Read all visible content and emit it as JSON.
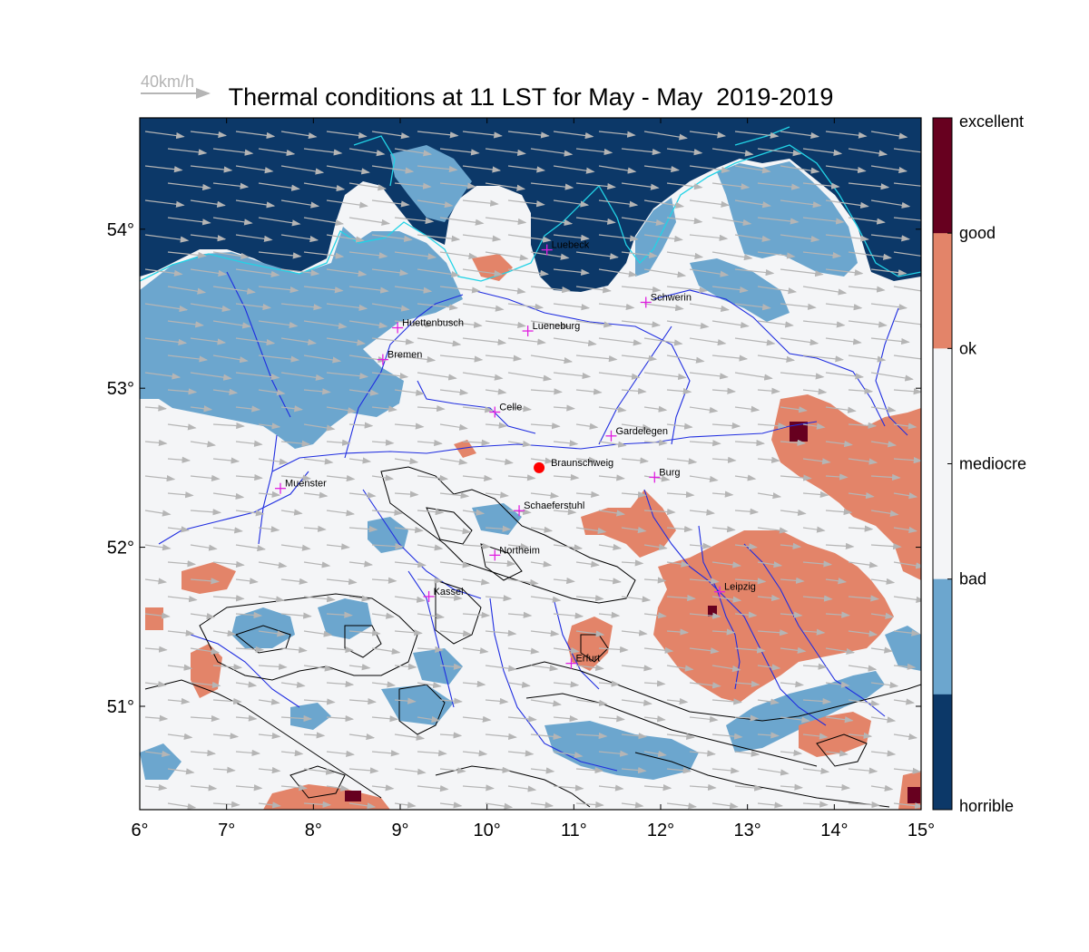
{
  "title": "Thermal conditions at 11 LST for May - May  2019-2019",
  "wind_reference": {
    "label": "40km/h"
  },
  "map": {
    "lon_range": [
      6,
      15
    ],
    "lat_range": [
      50.35,
      54.7
    ],
    "lon_ticks": [
      "6°",
      "7°",
      "8°",
      "9°",
      "10°",
      "11°",
      "12°",
      "13°",
      "14°",
      "15°"
    ],
    "lat_ticks": [
      "51°",
      "52°",
      "53°",
      "54°"
    ],
    "lat_tick_values": [
      51,
      52,
      53,
      54
    ]
  },
  "colorbar": {
    "labels": [
      "excellent",
      "good",
      "ok",
      "mediocre",
      "bad",
      "horrible"
    ],
    "colors": {
      "excellent": "#67001f",
      "good": "#e38469",
      "ok": "#f4f5f7",
      "mediocre": "#f4f5f7",
      "bad": "#6ca6ce",
      "horrible": "#0c3868"
    }
  },
  "cities": [
    {
      "name": "Luebeck",
      "lon": 10.69,
      "lat": 53.87
    },
    {
      "name": "Schwerin",
      "lon": 11.83,
      "lat": 53.54
    },
    {
      "name": "Huettenbusch",
      "lon": 8.97,
      "lat": 53.38
    },
    {
      "name": "Lueneburg",
      "lon": 10.47,
      "lat": 53.36
    },
    {
      "name": "Bremen",
      "lon": 8.8,
      "lat": 53.18
    },
    {
      "name": "Celle",
      "lon": 10.09,
      "lat": 52.85
    },
    {
      "name": "Gardelegen",
      "lon": 11.43,
      "lat": 52.7
    },
    {
      "name": "Braunschweig",
      "lon": 10.6,
      "lat": 52.5,
      "marker": "dot"
    },
    {
      "name": "Burg",
      "lon": 11.93,
      "lat": 52.44
    },
    {
      "name": "Muenster",
      "lon": 7.62,
      "lat": 52.37
    },
    {
      "name": "Schaeferstuhl",
      "lon": 10.37,
      "lat": 52.23
    },
    {
      "name": "Northeim",
      "lon": 10.09,
      "lat": 51.95
    },
    {
      "name": "Leipzig",
      "lon": 12.68,
      "lat": 51.72
    },
    {
      "name": "Kassel",
      "lon": 9.33,
      "lat": 51.69
    },
    {
      "name": "Erfurt",
      "lon": 10.97,
      "lat": 51.27
    }
  ]
}
